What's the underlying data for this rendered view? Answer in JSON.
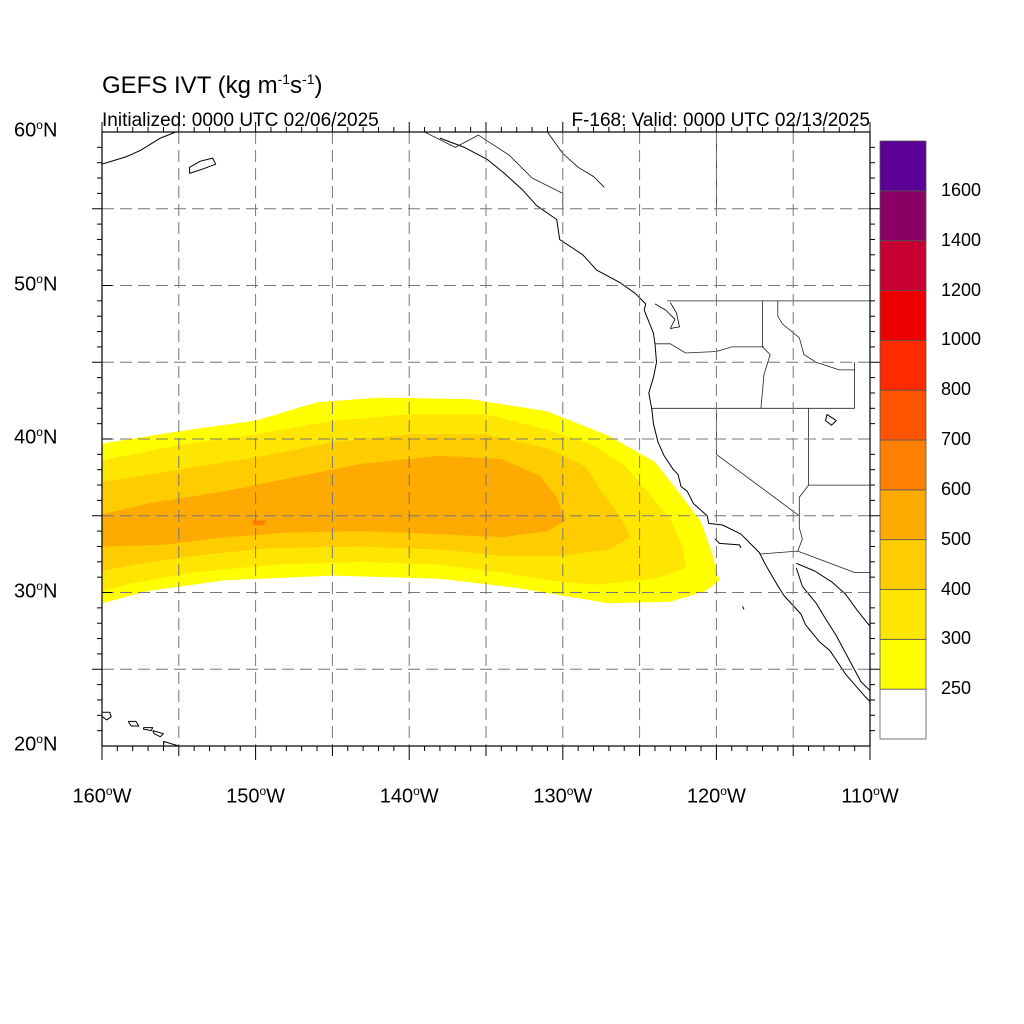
{
  "title": {
    "main_prefix": "GEFS IVT (kg m",
    "exp1": "-1",
    "mid": "s",
    "exp2": "-1",
    "suffix": ")"
  },
  "subtitle": {
    "left": "Initialized: 0000 UTC 02/06/2025",
    "right": "F-168: Valid: 0000 UTC 02/13/2025"
  },
  "map": {
    "region": "Northeast Pacific / US West Coast",
    "lon_range": [
      -160,
      -110
    ],
    "lat_range": [
      20,
      60
    ],
    "gridlines": "dashed",
    "grid_lons": [
      -155,
      -150,
      -145,
      -140,
      -135,
      -130,
      -125,
      -120,
      -115
    ],
    "grid_lats": [
      25,
      30,
      35,
      40,
      45,
      50,
      55
    ],
    "lat_ticks": [
      {
        "value": 20,
        "num": "20",
        "deg": "o",
        "hemi": "N"
      },
      {
        "value": 30,
        "num": "30",
        "deg": "o",
        "hemi": "N"
      },
      {
        "value": 40,
        "num": "40",
        "deg": "o",
        "hemi": "N"
      },
      {
        "value": 50,
        "num": "50",
        "deg": "o",
        "hemi": "N"
      },
      {
        "value": 60,
        "num": "60",
        "deg": "o",
        "hemi": "N"
      }
    ],
    "lon_ticks": [
      {
        "value": -160,
        "num": "160",
        "deg": "o",
        "hemi": "W"
      },
      {
        "value": -150,
        "num": "150",
        "deg": "o",
        "hemi": "W"
      },
      {
        "value": -140,
        "num": "140",
        "deg": "o",
        "hemi": "W"
      },
      {
        "value": -130,
        "num": "130",
        "deg": "o",
        "hemi": "W"
      },
      {
        "value": -120,
        "num": "120",
        "deg": "o",
        "hemi": "W"
      },
      {
        "value": -110,
        "num": "110",
        "deg": "o",
        "hemi": "W"
      }
    ]
  },
  "colorbar": {
    "levels": [
      {
        "label": "",
        "color": "#ffffff"
      },
      {
        "label": "250",
        "color": "#ffff00"
      },
      {
        "label": "300",
        "color": "#ffe600"
      },
      {
        "label": "400",
        "color": "#ffcc00"
      },
      {
        "label": "500",
        "color": "#ffaa00"
      },
      {
        "label": "600",
        "color": "#ff8000"
      },
      {
        "label": "700",
        "color": "#ff5500"
      },
      {
        "label": "800",
        "color": "#ff2a00"
      },
      {
        "label": "1000",
        "color": "#ee0000"
      },
      {
        "label": "1200",
        "color": "#c80032"
      },
      {
        "label": "1400",
        "color": "#8a0064"
      },
      {
        "label": "1600",
        "color": "#5a0096"
      }
    ]
  },
  "ivt_field": {
    "units": "kg m-1 s-1",
    "regions": [
      {
        "level": 250,
        "color": "#ffff00",
        "polygon": [
          [
            -160,
            39.7
          ],
          [
            -155,
            40.5
          ],
          [
            -150,
            41.2
          ],
          [
            -146,
            42.4
          ],
          [
            -142,
            42.7
          ],
          [
            -136,
            42.6
          ],
          [
            -131,
            41.8
          ],
          [
            -127,
            40.2
          ],
          [
            -124,
            38.5
          ],
          [
            -122.5,
            36.6
          ],
          [
            -121,
            34.6
          ],
          [
            -120.3,
            32.6
          ],
          [
            -119.8,
            30.8
          ],
          [
            -120.7,
            30.1
          ],
          [
            -123,
            29.4
          ],
          [
            -127,
            29.3
          ],
          [
            -130,
            29.8
          ],
          [
            -133,
            30.3
          ],
          [
            -138,
            30.9
          ],
          [
            -145,
            31.1
          ],
          [
            -152,
            30.8
          ],
          [
            -157,
            30.1
          ],
          [
            -160,
            29.3
          ]
        ]
      },
      {
        "level": 300,
        "color": "#ffe600",
        "polygon": [
          [
            -160,
            38.6
          ],
          [
            -155,
            39.6
          ],
          [
            -150,
            40.3
          ],
          [
            -145,
            41.2
          ],
          [
            -140,
            41.6
          ],
          [
            -135,
            41.6
          ],
          [
            -131,
            40.6
          ],
          [
            -128,
            39.6
          ],
          [
            -126,
            38.3
          ],
          [
            -124.5,
            36.6
          ],
          [
            -123,
            34.8
          ],
          [
            -122.2,
            33.0
          ],
          [
            -122,
            31.6
          ],
          [
            -124,
            30.9
          ],
          [
            -128,
            30.5
          ],
          [
            -131,
            30.8
          ],
          [
            -134,
            31.3
          ],
          [
            -138,
            31.8
          ],
          [
            -143,
            32.0
          ],
          [
            -149,
            31.8
          ],
          [
            -154,
            31.3
          ],
          [
            -158,
            30.6
          ],
          [
            -160,
            30.1
          ]
        ]
      },
      {
        "level": 400,
        "color": "#ffcc00",
        "polygon": [
          [
            -160,
            37.2
          ],
          [
            -155,
            38.0
          ],
          [
            -150,
            38.8
          ],
          [
            -145,
            39.8
          ],
          [
            -140,
            40.3
          ],
          [
            -135,
            40.3
          ],
          [
            -131,
            39.4
          ],
          [
            -128.5,
            38.2
          ],
          [
            -127.5,
            36.6
          ],
          [
            -126.3,
            35.0
          ],
          [
            -125.6,
            33.6
          ],
          [
            -127,
            32.8
          ],
          [
            -130,
            32.4
          ],
          [
            -134,
            32.4
          ],
          [
            -138,
            32.8
          ],
          [
            -143,
            33.0
          ],
          [
            -149,
            32.9
          ],
          [
            -154,
            32.4
          ],
          [
            -158,
            31.8
          ],
          [
            -160,
            31.4
          ]
        ]
      },
      {
        "level": 500,
        "color": "#ffaa00",
        "polygon": [
          [
            -160,
            35.1
          ],
          [
            -157,
            35.8
          ],
          [
            -152,
            36.6
          ],
          [
            -147,
            37.6
          ],
          [
            -143,
            38.4
          ],
          [
            -138,
            38.9
          ],
          [
            -134,
            38.7
          ],
          [
            -131.5,
            37.6
          ],
          [
            -130.4,
            36.2
          ],
          [
            -129.8,
            34.7
          ],
          [
            -131,
            34.0
          ],
          [
            -134,
            33.6
          ],
          [
            -138,
            33.8
          ],
          [
            -143,
            34.0
          ],
          [
            -148,
            33.9
          ],
          [
            -152,
            33.6
          ],
          [
            -156,
            33.1
          ],
          [
            -160,
            33.0
          ]
        ]
      },
      {
        "level": 600,
        "color": "#ff8000",
        "polygon": [
          [
            -150.2,
            34.7
          ],
          [
            -149.4,
            34.7
          ],
          [
            -149.4,
            34.4
          ],
          [
            -150.2,
            34.4
          ]
        ]
      }
    ]
  },
  "geography": {
    "coastline": [
      [
        -138,
        59.6
      ],
      [
        -136.4,
        59.0
      ],
      [
        -134.9,
        58.2
      ],
      [
        -133.8,
        57.3
      ],
      [
        -132.6,
        56.2
      ],
      [
        -131.7,
        55.2
      ],
      [
        -130.4,
        54.3
      ],
      [
        -130.2,
        53.0
      ],
      [
        -128.7,
        52.0
      ],
      [
        -127.8,
        51.0
      ],
      [
        -126.3,
        50.2
      ],
      [
        -125.3,
        49.5
      ],
      [
        -124.6,
        48.8
      ],
      [
        -124.7,
        48.4
      ],
      [
        -124.1,
        46.9
      ],
      [
        -124.0,
        46.2
      ],
      [
        -123.9,
        45.0
      ],
      [
        -124.1,
        44.0
      ],
      [
        -124.4,
        43.0
      ],
      [
        -124.2,
        41.9
      ],
      [
        -124.1,
        41.0
      ],
      [
        -123.8,
        39.8
      ],
      [
        -123.4,
        38.9
      ],
      [
        -122.8,
        38.0
      ],
      [
        -122.5,
        37.7
      ],
      [
        -122.3,
        36.9
      ],
      [
        -121.9,
        36.6
      ],
      [
        -121.5,
        35.8
      ],
      [
        -120.6,
        35.0
      ],
      [
        -120.5,
        34.5
      ],
      [
        -119.6,
        34.4
      ],
      [
        -118.8,
        34.0
      ],
      [
        -118.4,
        33.8
      ],
      [
        -117.8,
        33.2
      ],
      [
        -117.2,
        32.6
      ],
      [
        -116.8,
        31.8
      ],
      [
        -116.1,
        30.6
      ],
      [
        -115.6,
        29.8
      ],
      [
        -114.5,
        28.6
      ],
      [
        -114.2,
        27.9
      ],
      [
        -113.3,
        26.8
      ],
      [
        -112.6,
        26.2
      ],
      [
        -111.6,
        24.7
      ],
      [
        -110.3,
        23.2
      ],
      [
        -110,
        22.9
      ]
    ],
    "baja_east": [
      [
        -110,
        23.6
      ],
      [
        -110.6,
        24.2
      ],
      [
        -111.4,
        25.7
      ],
      [
        -112.2,
        27.2
      ],
      [
        -112.9,
        28.3
      ],
      [
        -113.5,
        29.3
      ],
      [
        -114.4,
        30.4
      ],
      [
        -114.8,
        31.6
      ]
    ],
    "mainland_mexico": [
      [
        -110,
        27.8
      ],
      [
        -110.8,
        28.8
      ],
      [
        -111.6,
        29.9
      ],
      [
        -112.5,
        30.7
      ],
      [
        -113.6,
        31.4
      ],
      [
        -114.8,
        31.9
      ]
    ],
    "alaska": [
      [
        -160,
        57.9
      ],
      [
        -158.4,
        58.4
      ],
      [
        -157.5,
        58.8
      ],
      [
        -156.2,
        59.6
      ],
      [
        -155.2,
        60
      ]
    ],
    "kodiak": [
      [
        -154.3,
        57.3
      ],
      [
        -153.4,
        57.6
      ],
      [
        -152.6,
        57.9
      ],
      [
        -152.8,
        58.3
      ],
      [
        -153.6,
        58.1
      ],
      [
        -154.3,
        57.7
      ],
      [
        -154.3,
        57.3
      ]
    ],
    "bc_north": [
      [
        -131,
        60
      ],
      [
        -130,
        58.6
      ],
      [
        -129,
        57.7
      ],
      [
        -128,
        57.1
      ],
      [
        -127.3,
        56.4
      ]
    ],
    "hawaii": [
      [
        [
          -160.1,
          22.2
        ],
        [
          -159.5,
          22.2
        ],
        [
          -159.4,
          21.9
        ],
        [
          -159.7,
          21.7
        ],
        [
          -160.1,
          22.0
        ],
        [
          -160.1,
          22.2
        ]
      ],
      [
        [
          -158.3,
          21.6
        ],
        [
          -157.8,
          21.6
        ],
        [
          -157.6,
          21.3
        ],
        [
          -158.1,
          21.3
        ],
        [
          -158.3,
          21.6
        ]
      ],
      [
        [
          -157.3,
          21.2
        ],
        [
          -156.7,
          21.2
        ],
        [
          -156.8,
          21.0
        ],
        [
          -157.3,
          21.1
        ],
        [
          -157.3,
          21.2
        ]
      ],
      [
        [
          -156.7,
          21.0
        ],
        [
          -156.0,
          20.8
        ],
        [
          -156.2,
          20.6
        ],
        [
          -156.6,
          20.8
        ],
        [
          -156.7,
          21.0
        ]
      ],
      [
        [
          -156.0,
          20.3
        ],
        [
          -155.0,
          20.0
        ],
        [
          -154.8,
          19.6
        ],
        [
          -155.5,
          19.0
        ],
        [
          -155.9,
          19.2
        ],
        [
          -156.0,
          20.3
        ]
      ]
    ],
    "channel_islands": [
      [
        -120.1,
        33.5
      ],
      [
        -119.8,
        33.2
      ],
      [
        -118.5,
        33.1
      ],
      [
        -118.4,
        32.9
      ]
    ],
    "guadalupe": [
      [
        -118.3,
        29.1
      ],
      [
        -118.2,
        28.9
      ]
    ],
    "great_salt_lake": [
      [
        -112.8,
        41.6
      ],
      [
        -112.2,
        41.2
      ],
      [
        -112.5,
        40.9
      ],
      [
        -112.9,
        41.2
      ],
      [
        -112.8,
        41.6
      ]
    ],
    "borders": [
      [
        [
          -123.2,
          49.0
        ],
        [
          -110,
          49.0
        ]
      ],
      [
        [
          -124.0,
          46.2
        ],
        [
          -123.0,
          46.2
        ],
        [
          -122.0,
          45.6
        ],
        [
          -120.0,
          45.7
        ],
        [
          -119.0,
          46.0
        ],
        [
          -116.9,
          46.0
        ]
      ],
      [
        [
          -117.0,
          49.0
        ],
        [
          -117.0,
          46.0
        ],
        [
          -116.5,
          45.5
        ],
        [
          -116.9,
          44.2
        ],
        [
          -117.1,
          42.0
        ]
      ],
      [
        [
          -124.2,
          42.0
        ],
        [
          -111.0,
          42.0
        ]
      ],
      [
        [
          -120.0,
          42.0
        ],
        [
          -120.0,
          39.0
        ],
        [
          -114.6,
          35.0
        ],
        [
          -114.6,
          34.2
        ],
        [
          -114.4,
          33.5
        ],
        [
          -114.7,
          32.7
        ]
      ],
      [
        [
          -117.2,
          32.5
        ],
        [
          -114.7,
          32.7
        ],
        [
          -111.0,
          31.3
        ],
        [
          -110,
          31.3
        ]
      ],
      [
        [
          -114.0,
          42.0
        ],
        [
          -114.0,
          37.0
        ],
        [
          -114.6,
          36.2
        ],
        [
          -114.6,
          35.0
        ]
      ],
      [
        [
          -111.0,
          45.0
        ],
        [
          -111.0,
          42.0
        ]
      ],
      [
        [
          -114.0,
          37.0
        ],
        [
          -110,
          37.0
        ]
      ],
      [
        [
          -116.0,
          49.0
        ],
        [
          -116.0,
          48.0
        ],
        [
          -115.7,
          47.5
        ],
        [
          -114.6,
          46.6
        ],
        [
          -114.3,
          45.5
        ],
        [
          -113.5,
          45.0
        ],
        [
          -112.0,
          44.5
        ],
        [
          -111.0,
          44.5
        ]
      ],
      [
        [
          -139.0,
          60.0
        ],
        [
          -137.0,
          59.0
        ],
        [
          -135.5,
          59.8
        ],
        [
          -133.5,
          58.5
        ],
        [
          -132.0,
          57.0
        ],
        [
          -130.0,
          56.0
        ],
        [
          -130.0,
          55.0
        ]
      ],
      [
        [
          -120.0,
          60
        ],
        [
          -120.0,
          55.0
        ]
      ]
    ],
    "lakes": [
      [
        -124.0,
        48.8
      ],
      [
        -123.3,
        48.4
      ],
      [
        -122.7,
        47.8
      ],
      [
        -123.0,
        47.2
      ],
      [
        -122.4,
        47.3
      ],
      [
        -122.6,
        48.2
      ],
      [
        -123.0,
        48.9
      ]
    ]
  }
}
